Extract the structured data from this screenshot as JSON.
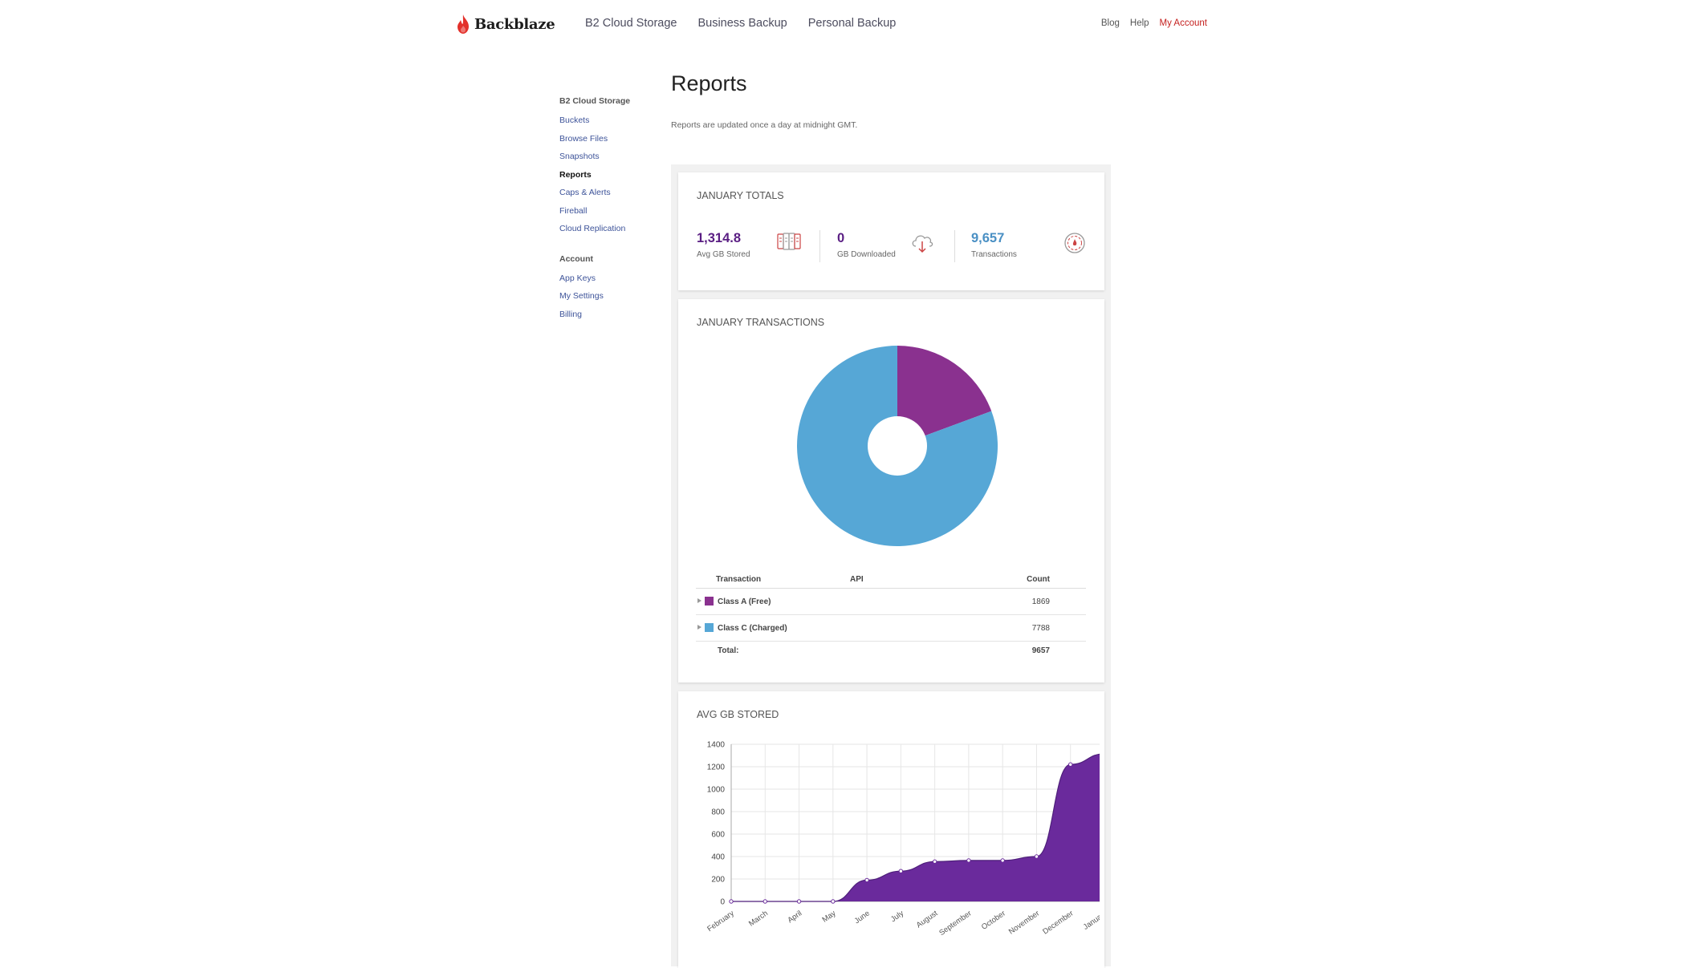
{
  "brand": {
    "name": "Backblaze"
  },
  "nav": {
    "main": [
      "B2 Cloud Storage",
      "Business Backup",
      "Personal Backup"
    ],
    "right": {
      "blog": "Blog",
      "help": "Help",
      "account": "My Account"
    }
  },
  "sidebar": {
    "section1": {
      "title": "B2 Cloud Storage",
      "items": [
        "Buckets",
        "Browse Files",
        "Snapshots",
        "Reports",
        "Caps & Alerts",
        "Fireball",
        "Cloud Replication"
      ],
      "active": "Reports"
    },
    "section2": {
      "title": "Account",
      "items": [
        "App Keys",
        "My Settings",
        "Billing"
      ]
    }
  },
  "page": {
    "title": "Reports",
    "note": "Reports are updated once a day at midnight GMT."
  },
  "totals": {
    "title": "JANUARY TOTALS",
    "stats": [
      {
        "value": "1,314.8",
        "label": "Avg GB Stored",
        "icon": "storage-drives-icon",
        "color": "#5a1e83"
      },
      {
        "value": "0",
        "label": "GB Downloaded",
        "icon": "cloud-download-icon",
        "color": "#5a1e83"
      },
      {
        "value": "9,657",
        "label": "Transactions",
        "icon": "transactions-gauge-icon",
        "color": "#4a90c4"
      }
    ]
  },
  "transactions": {
    "title": "JANUARY TRANSACTIONS",
    "headers": {
      "transaction": "Transaction",
      "api": "API",
      "count": "Count"
    },
    "rows": [
      {
        "name": "Class A (Free)",
        "count": "1869",
        "color": "#8a318f"
      },
      {
        "name": "Class C (Charged)",
        "count": "7788",
        "color": "#56a7d6"
      }
    ],
    "total_label": "Total:",
    "total_count": "9657"
  },
  "stored": {
    "title": "AVG GB STORED"
  },
  "chart_data": [
    {
      "type": "pie",
      "title": "JANUARY TRANSACTIONS",
      "donut": true,
      "slices": [
        {
          "name": "Class A (Free)",
          "value": 1869,
          "color": "#8a318f"
        },
        {
          "name": "Class C (Charged)",
          "value": 7788,
          "color": "#56a7d6"
        }
      ]
    },
    {
      "type": "area",
      "title": "AVG GB STORED",
      "categories": [
        "February",
        "March",
        "April",
        "May",
        "June",
        "July",
        "August",
        "September",
        "October",
        "November",
        "December",
        "January"
      ],
      "values": [
        0,
        0,
        0,
        0,
        190,
        270,
        355,
        365,
        365,
        400,
        1220,
        1315
      ],
      "ylim": [
        0,
        1400
      ],
      "yticks": [
        0,
        200,
        400,
        600,
        800,
        1000,
        1200,
        1400
      ],
      "grid": true,
      "color": "#6a2a9c"
    }
  ]
}
